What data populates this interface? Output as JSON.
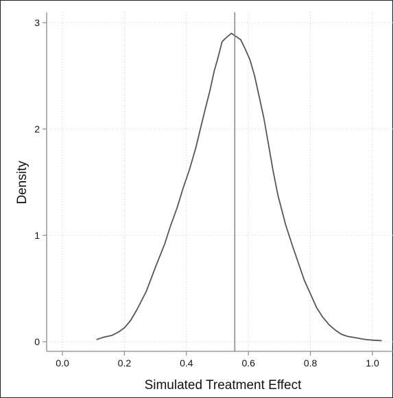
{
  "chart_data": {
    "type": "line",
    "title": "",
    "xlabel": "Simulated Treatment Effect",
    "ylabel": "Density",
    "xlim": [
      0.0,
      1.05
    ],
    "ylim": [
      0,
      3.1
    ],
    "xticks": [
      0.0,
      0.2,
      0.4,
      0.6,
      0.8,
      1.0
    ],
    "xtick_labels": [
      "0.0",
      "0.2",
      "0.4",
      "0.6",
      "0.8",
      "1.0"
    ],
    "yticks": [
      0,
      1,
      2,
      3
    ],
    "ytick_labels": [
      "0",
      "1",
      "2",
      "3"
    ],
    "grid": true,
    "colors": {
      "line": "#555555",
      "reference": "#8a8a8a",
      "grid": "#cccccc",
      "axis": "#888888"
    },
    "reference_line": {
      "x": 0.556
    },
    "series": [
      {
        "x": [
          0.11,
          0.13,
          0.16,
          0.18,
          0.2,
          0.22,
          0.24,
          0.27,
          0.3,
          0.33,
          0.35,
          0.37,
          0.39,
          0.41,
          0.43,
          0.445,
          0.46,
          0.475,
          0.49,
          0.5,
          0.515,
          0.525,
          0.545,
          0.555,
          0.575,
          0.59,
          0.605,
          0.62,
          0.635,
          0.65,
          0.665,
          0.68,
          0.695,
          0.72,
          0.74,
          0.76,
          0.78,
          0.8,
          0.82,
          0.84,
          0.86,
          0.88,
          0.9,
          0.92,
          0.94,
          0.96,
          0.98,
          1.0,
          1.03
        ],
        "y": [
          0.02,
          0.04,
          0.06,
          0.09,
          0.13,
          0.2,
          0.3,
          0.47,
          0.7,
          0.92,
          1.1,
          1.26,
          1.45,
          1.62,
          1.82,
          2.0,
          2.18,
          2.35,
          2.55,
          2.65,
          2.82,
          2.85,
          2.9,
          2.88,
          2.84,
          2.75,
          2.65,
          2.5,
          2.3,
          2.1,
          1.85,
          1.6,
          1.38,
          1.1,
          0.92,
          0.75,
          0.58,
          0.45,
          0.32,
          0.23,
          0.16,
          0.11,
          0.07,
          0.05,
          0.04,
          0.03,
          0.02,
          0.015,
          0.01
        ]
      }
    ]
  }
}
